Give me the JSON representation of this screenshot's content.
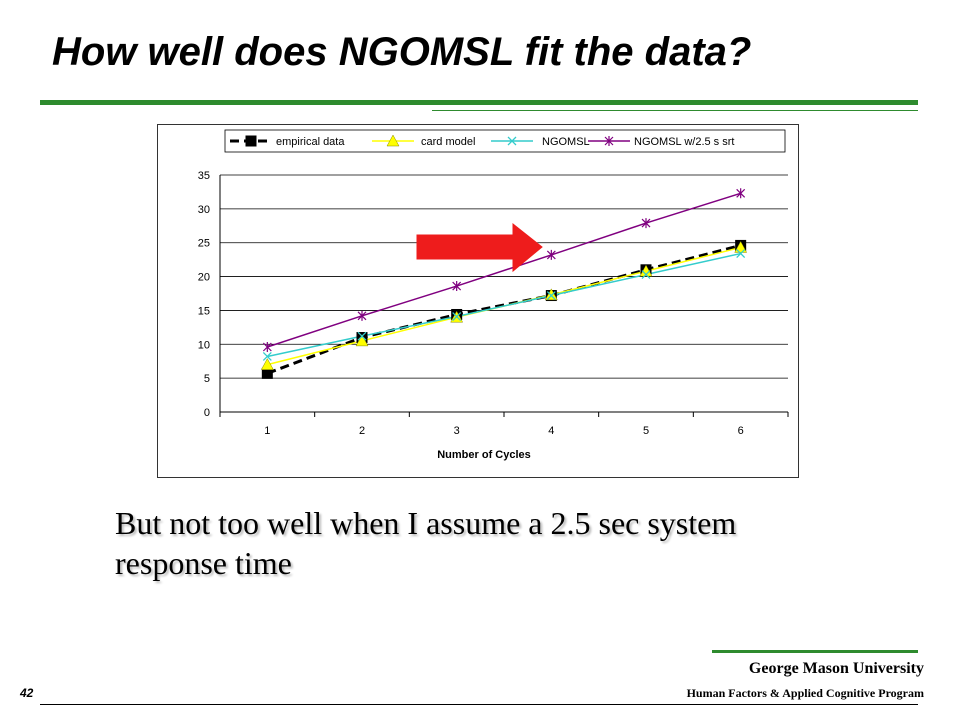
{
  "slide": {
    "title": "How well does NGOMSL fit the data?",
    "caption": "But not too well when I assume a 2.5 sec system response time",
    "page_number": "42",
    "footer_university": "George Mason University",
    "footer_program": "Human Factors & Applied Cognitive Program",
    "accent_color": "#2e8b2e",
    "arrow_color": "#ee1c1c",
    "arrow_icon": "right-arrow-icon"
  },
  "chart_data": {
    "type": "line",
    "xlabel": "Number of Cycles",
    "ylabel": "",
    "categories": [
      "1",
      "2",
      "3",
      "4",
      "5",
      "6"
    ],
    "ylim": [
      0,
      35
    ],
    "yticks": [
      0,
      5,
      10,
      15,
      20,
      25,
      30,
      35
    ],
    "grid": "horizontal",
    "legend_position": "top",
    "series": [
      {
        "name": "empirical data",
        "values": [
          5.7,
          11.0,
          14.4,
          17.2,
          21.0,
          24.6
        ],
        "color": "#000000",
        "marker": "square",
        "dash": true
      },
      {
        "name": "card model",
        "values": [
          7.0,
          10.5,
          14.0,
          17.3,
          20.8,
          24.3
        ],
        "color": "#ffff00",
        "marker": "triangle",
        "dash": false
      },
      {
        "name": "NGOMSL",
        "values": [
          8.2,
          11.2,
          14.1,
          17.2,
          20.3,
          23.4
        ],
        "color": "#33cccc",
        "marker": "x",
        "dash": false
      },
      {
        "name": "NGOMSL w/2.5 s srt",
        "values": [
          9.6,
          14.2,
          18.6,
          23.2,
          27.9,
          32.3
        ],
        "color": "#800080",
        "marker": "star",
        "dash": false
      }
    ]
  }
}
